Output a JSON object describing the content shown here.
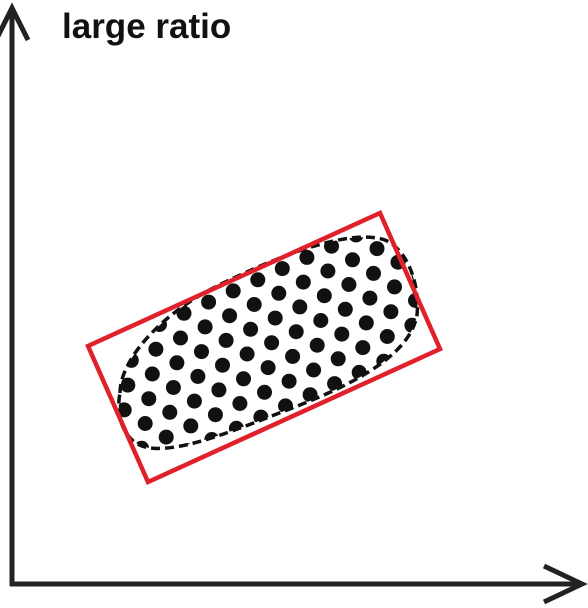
{
  "title": "large ratio",
  "colors": {
    "axis": "#222222",
    "box": "#e0202a",
    "dots": "#111111",
    "outline": "#111111",
    "background": "#ffffff"
  }
}
